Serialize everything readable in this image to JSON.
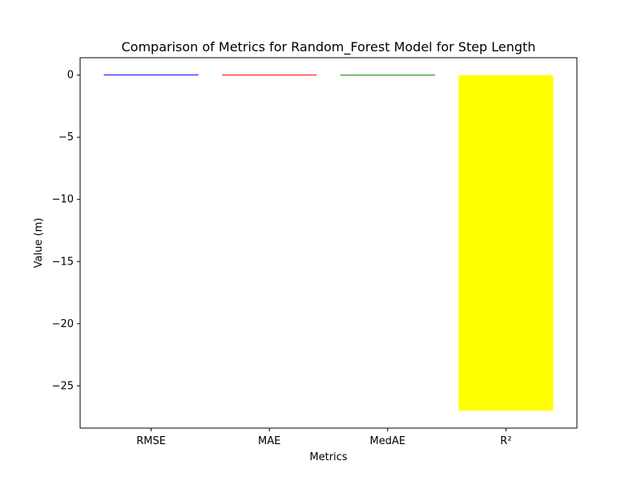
{
  "chart_data": {
    "type": "bar",
    "title": "Comparison of Metrics for Random_Forest Model for Step Length",
    "xlabel": "Metrics",
    "ylabel": "Value (m)",
    "categories": [
      "RMSE",
      "MAE",
      "MedAE",
      "R²"
    ],
    "values": [
      0.05,
      0.04,
      0.03,
      -27.0
    ],
    "colors": [
      "#0000ff",
      "#ff0000",
      "#008000",
      "#ffff00"
    ],
    "ylim": [
      -28.4,
      1.4
    ],
    "yticks": [
      0,
      -5,
      -10,
      -15,
      -20,
      -25
    ],
    "ytick_labels": [
      "0",
      "−5",
      "−10",
      "−15",
      "−20",
      "−25"
    ],
    "grid": false,
    "legend": "none"
  }
}
